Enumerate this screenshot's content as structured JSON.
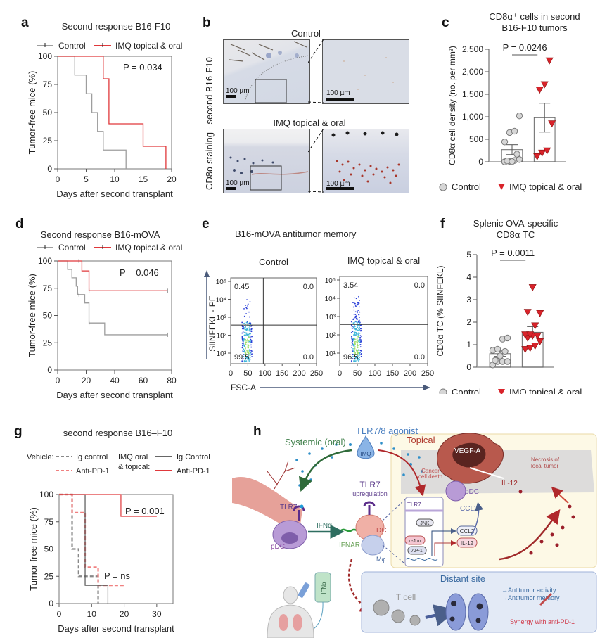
{
  "panels": {
    "a": {
      "label": "a"
    },
    "b": {
      "label": "b"
    },
    "c": {
      "label": "c"
    },
    "d": {
      "label": "d"
    },
    "e": {
      "label": "e"
    },
    "f": {
      "label": "f"
    },
    "g": {
      "label": "g"
    },
    "h": {
      "label": "h"
    }
  },
  "colors": {
    "control": "#9e9e9e",
    "imq": "#e0383b",
    "imq_light": "#f08080"
  },
  "chart_data": [
    {
      "id": "a",
      "type": "line",
      "subtype": "kaplan-meier",
      "title": "Second response B16-F10",
      "xlabel": "Days after second transplant",
      "ylabel": "Tumor-free mice (%)",
      "xlim": [
        0,
        20
      ],
      "ylim": [
        0,
        100
      ],
      "xticks": [
        "0",
        "5",
        "10",
        "15",
        "20"
      ],
      "yticks": [
        "0",
        "25",
        "50",
        "75",
        "100"
      ],
      "legend": [
        "Control",
        "IMQ topical & oral"
      ],
      "legend_position": "top",
      "annotation": "P = 0.034",
      "series": [
        {
          "name": "Control",
          "steps": [
            [
              0,
              100
            ],
            [
              3,
              83.3
            ],
            [
              5,
              66.7
            ],
            [
              6,
              50
            ],
            [
              7,
              33.3
            ],
            [
              8,
              16.7
            ],
            [
              12,
              0
            ]
          ]
        },
        {
          "name": "IMQ topical & oral",
          "steps": [
            [
              0,
              100
            ],
            [
              8,
              80
            ],
            [
              9,
              40
            ],
            [
              15,
              20
            ],
            [
              19,
              0
            ]
          ]
        }
      ]
    },
    {
      "id": "b",
      "type": "image",
      "ylabel": "CD8α staining - second B16-F10",
      "rows": [
        "Control",
        "IMQ topical & oral"
      ],
      "scalebar": "100 µm"
    },
    {
      "id": "c",
      "type": "bar",
      "title_line1": "CD8α⁺ cells in second",
      "title_line2": "B16-F10 tumors",
      "ylabel": "CD8α cell density (no. per mm²)",
      "ylim": [
        0,
        2500
      ],
      "yticks": [
        "0",
        "500",
        "1,000",
        "1,500",
        "2,000",
        "2,500"
      ],
      "categories": [
        "Control",
        "IMQ topical & oral"
      ],
      "values": [
        270,
        980
      ],
      "sem": [
        110,
        320
      ],
      "points": [
        [
          0,
          10,
          30,
          50,
          20,
          5,
          170,
          440,
          650,
          680,
          1020
        ],
        [
          120,
          200,
          250,
          850,
          1600,
          1720,
          2250
        ]
      ],
      "annotation": "P = 0.0246",
      "legend": [
        "Control",
        "IMQ topical & oral"
      ]
    },
    {
      "id": "d",
      "type": "line",
      "subtype": "kaplan-meier",
      "title": "Second response B16-mOVA",
      "xlabel": "Days after second transplant",
      "ylabel": "Tumor-free mice (%)",
      "xlim": [
        0,
        80
      ],
      "ylim": [
        0,
        100
      ],
      "xticks": [
        "0",
        "20",
        "40",
        "60",
        "80"
      ],
      "yticks": [
        "0",
        "25",
        "50",
        "75",
        "100"
      ],
      "legend": [
        "Control",
        "IMQ topical & oral"
      ],
      "annotation": "P = 0.046",
      "series": [
        {
          "name": "Control",
          "steps": [
            [
              0,
              100
            ],
            [
              7,
              92.3
            ],
            [
              10,
              84.6
            ],
            [
              13,
              76.9
            ],
            [
              14,
              69.2
            ],
            [
              19,
              61.5
            ],
            [
              22,
              43.1
            ],
            [
              33,
              32.3
            ],
            [
              77,
              32.3
            ]
          ],
          "censored": [
            15,
            22,
            77
          ]
        },
        {
          "name": "IMQ topical & oral",
          "steps": [
            [
              0,
              100
            ],
            [
              17,
              90.9
            ],
            [
              22,
              72.7
            ],
            [
              77,
              72.7
            ]
          ],
          "censored": [
            15,
            22,
            77
          ]
        }
      ]
    },
    {
      "id": "e",
      "type": "scatter",
      "subtype": "flow-cytometry",
      "title": "B16-mOVA antitumor memory",
      "xlabel": "FSC-A",
      "ylabel": "SIINFEKL - PE",
      "xticks": [
        "0",
        "50",
        "100",
        "150",
        "200",
        "250"
      ],
      "yticks": [
        "10¹",
        "10²",
        "10³",
        "10⁴",
        "10⁵"
      ],
      "plots": [
        {
          "name": "Control",
          "quadrants": {
            "ul": "0.45",
            "ur": "0.0",
            "ll": "99.5",
            "lr": "0.0"
          }
        },
        {
          "name": "IMQ topical & oral",
          "quadrants": {
            "ul": "3.54",
            "ur": "0.0",
            "ll": "96.5",
            "lr": "0.0"
          }
        }
      ]
    },
    {
      "id": "f",
      "type": "bar",
      "title_line1": "Splenic OVA-specific",
      "title_line2": "CD8α TC",
      "ylabel": "CD8α TC (% SIINFEKL)",
      "ylim": [
        0,
        5
      ],
      "yticks": [
        "0",
        "1",
        "2",
        "3",
        "4",
        "5"
      ],
      "categories": [
        "Control",
        "IMQ topical & oral"
      ],
      "values": [
        0.6,
        1.55
      ],
      "sem": [
        0.12,
        0.25
      ],
      "points": [
        [
          0.1,
          0.25,
          0.25,
          0.25,
          0.3,
          0.5,
          0.7,
          0.75,
          0.8,
          1.25,
          1.3
        ],
        [
          0.8,
          0.85,
          0.95,
          1.15,
          1.3,
          1.4,
          1.4,
          1.45,
          1.45,
          1.85,
          2.4,
          2.45,
          3.55
        ]
      ],
      "annotation": "P = 0.0011",
      "legend": [
        "Control",
        "IMQ topical & oral"
      ]
    },
    {
      "id": "g",
      "type": "line",
      "subtype": "kaplan-meier",
      "title": "second response B16–F10",
      "xlabel": "Days after second transplant",
      "ylabel": "Tumor-free mice (%)",
      "xlim": [
        0,
        35
      ],
      "ylim": [
        0,
        100
      ],
      "xticks": [
        "0",
        "10",
        "20",
        "30"
      ],
      "yticks": [
        "0",
        "25",
        "50",
        "75",
        "100"
      ],
      "legend_groups": [
        {
          "group": "Vehicle:",
          "items": [
            "Ig control",
            "Anti-PD-1"
          ]
        },
        {
          "group_line1": "IMQ oral",
          "group_line2": "& topical:",
          "items": [
            "Ig Control",
            "Anti-PD-1"
          ]
        }
      ],
      "annotations": [
        "P = 0.001",
        "P = ns"
      ],
      "series": [
        {
          "name": "Vehicle Ig control",
          "dashed": true,
          "steps": [
            [
              0,
              100
            ],
            [
              4,
              50
            ],
            [
              6,
              25
            ],
            [
              12,
              0
            ]
          ]
        },
        {
          "name": "Vehicle Anti-PD-1",
          "dashed": true,
          "steps": [
            [
              0,
              100
            ],
            [
              4,
              83.3
            ],
            [
              8,
              33.3
            ],
            [
              12,
              16.7
            ],
            [
              20,
              16.7
            ]
          ]
        },
        {
          "name": "IMQ Ig Control",
          "dashed": false,
          "steps": [
            [
              0,
              100
            ],
            [
              8,
              16.7
            ],
            [
              15,
              0
            ]
          ]
        },
        {
          "name": "IMQ Anti-PD-1",
          "dashed": false,
          "steps": [
            [
              0,
              100
            ],
            [
              19,
              80
            ],
            [
              30,
              80
            ]
          ]
        }
      ]
    }
  ],
  "h": {
    "agonist": "TLR7/8 agonist",
    "systemic": "Systemic (oral)",
    "topical": "Topical",
    "imq": "IMQ",
    "tlr7": "TLR7",
    "tlr7_up": "TLR7",
    "upregulation": "upregulation",
    "ifna": "IFNα",
    "ifnar": "IFNAR",
    "pdc": "pDC",
    "dc": "DC",
    "mphi": "Mφ",
    "vegf": "VEGF-A",
    "necrosis1": "Necrosis of",
    "necrosis2": "local tumor",
    "cancer1": "Cancer",
    "cancer2": "cell death",
    "il12": "IL-12",
    "ccl2": "CCL2",
    "pdc2": "pDC",
    "tlr7_box": "TLR7",
    "jnk": "JNK",
    "cjun": "c-Jun",
    "ap1": "AP-1",
    "box_ccl2": "CCL2",
    "box_il12": "IL-12",
    "bag": "IFNα",
    "tcell": "T cell",
    "distant": "Distant site",
    "activity": "→Antitumor activity",
    "memory": "→Antitumor memory",
    "synergy": "Synergy with anti-PD-1"
  }
}
